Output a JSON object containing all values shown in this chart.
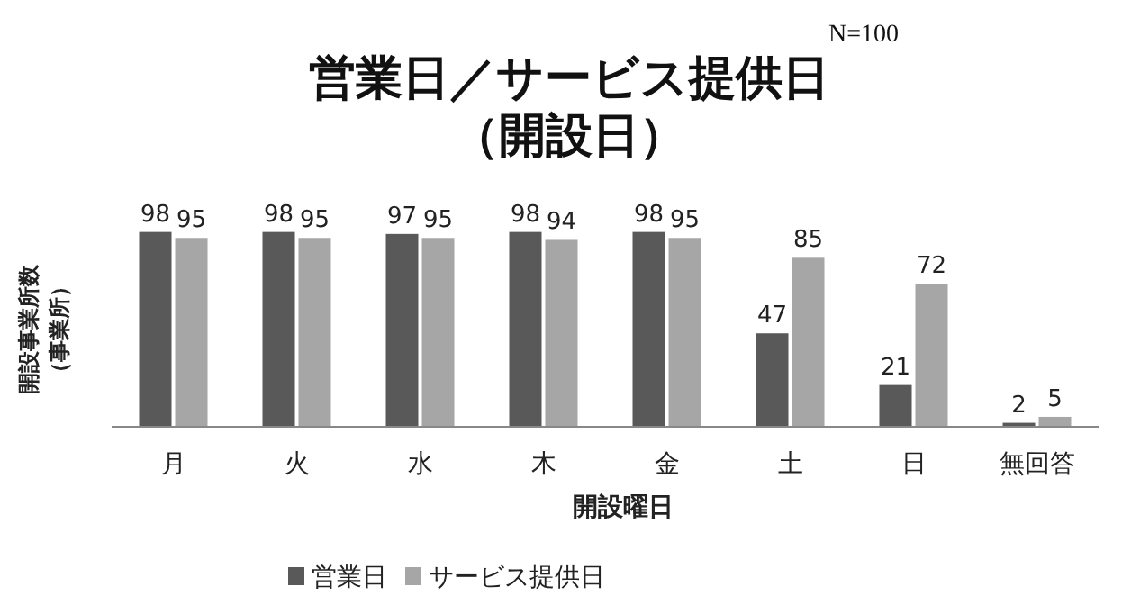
{
  "chart_data": {
    "type": "bar",
    "title": "営業日／サービス提供日",
    "subtitle": "（開設日）",
    "xlabel": "開設曜日",
    "ylabel": "開設事業所数（事業所）",
    "annotations": [
      "N=100"
    ],
    "categories": [
      "月",
      "火",
      "水",
      "木",
      "金",
      "土",
      "日",
      "無回答"
    ],
    "series": [
      {
        "name": "営業日",
        "color": "#595959",
        "values": [
          98,
          98,
          97,
          98,
          98,
          47,
          21,
          2
        ]
      },
      {
        "name": "サービス提供日",
        "color": "#a6a6a6",
        "values": [
          95,
          95,
          95,
          94,
          95,
          85,
          72,
          5
        ]
      }
    ],
    "data_labels": true,
    "legend": "bottom"
  }
}
